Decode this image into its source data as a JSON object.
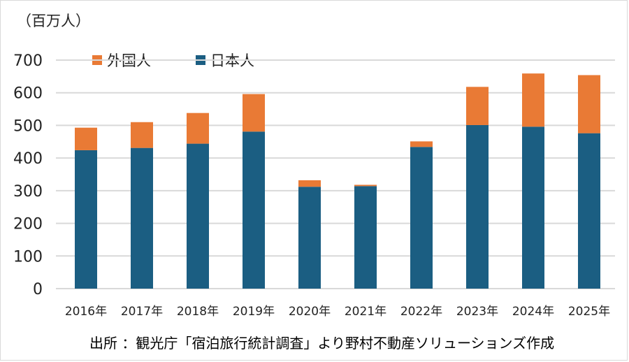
{
  "unit_label": "（百万人）",
  "source_note": "出所 ：観光庁「宿泊旅行統計調査」より野村不動産ソリューションズ作成",
  "colors": {
    "foreign": "#E97A35",
    "japanese": "#1B5E82",
    "grid": "#D9D9D9",
    "text": "#222222"
  },
  "chart_data": {
    "type": "bar",
    "stacked": true,
    "categories": [
      "2016年",
      "2017年",
      "2018年",
      "2019年",
      "2020年",
      "2021年",
      "2022年",
      "2023年",
      "2024年",
      "2025年"
    ],
    "series": [
      {
        "name": "日本人",
        "values": [
          424,
          431,
          444,
          481,
          312,
          314,
          434,
          501,
          496,
          476
        ]
      },
      {
        "name": "外国人",
        "values": [
          69,
          79,
          94,
          115,
          20,
          4,
          17,
          117,
          163,
          178
        ]
      }
    ],
    "ylim": [
      0,
      700
    ],
    "yticks": [
      0,
      100,
      200,
      300,
      400,
      500,
      600,
      700
    ],
    "grid": true,
    "legend_position": "top-left"
  }
}
